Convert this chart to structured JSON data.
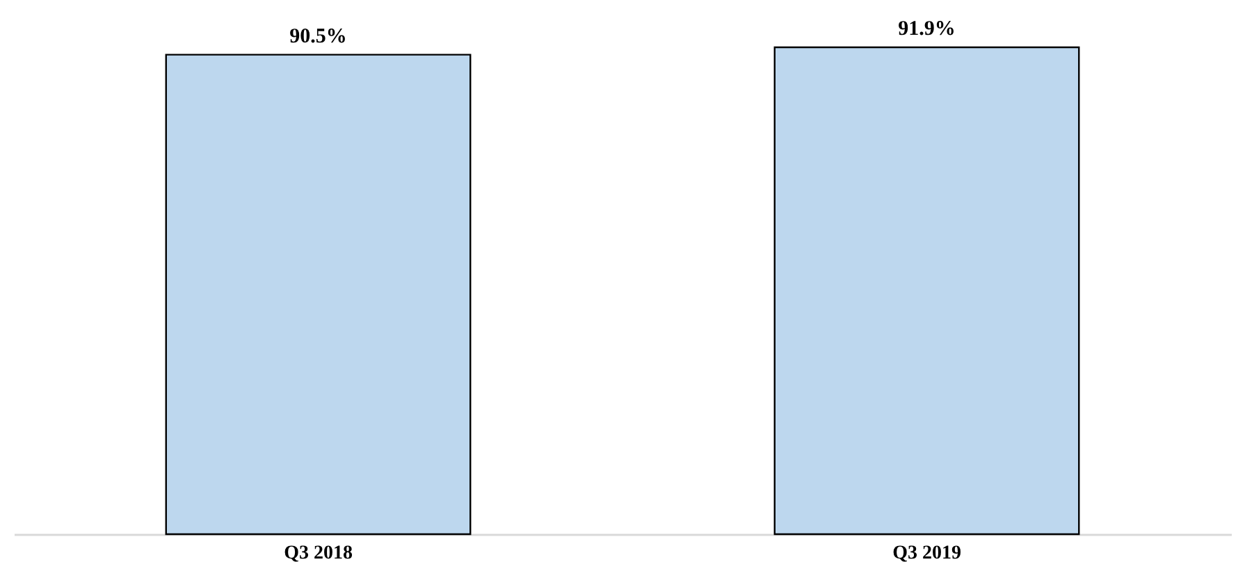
{
  "chart_data": {
    "type": "bar",
    "categories": [
      "Q3 2018",
      "Q3 2019"
    ],
    "values": [
      90.5,
      91.9
    ],
    "value_labels": [
      "90.5%",
      "91.9%"
    ],
    "color": "#bdd7ee",
    "tick_labels": "x"
  }
}
